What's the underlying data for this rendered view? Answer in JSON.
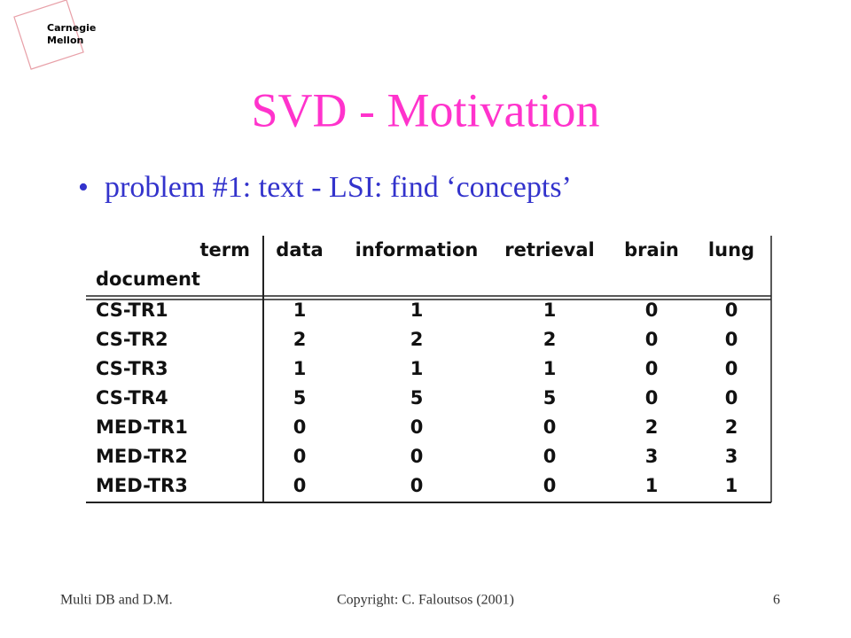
{
  "logo": {
    "line1": "Carnegie",
    "line2": "Mellon"
  },
  "title": "SVD - Motivation",
  "bullet": "problem #1: text - LSI: find ‘concepts’",
  "table": {
    "corner_top": "term",
    "corner_bottom": "document",
    "columns": [
      "data",
      "information",
      "retrieval",
      "brain",
      "lung"
    ],
    "rows": [
      [
        "CS-TR1",
        1,
        1,
        1,
        0,
        0
      ],
      [
        "CS-TR2",
        2,
        2,
        2,
        0,
        0
      ],
      [
        "CS-TR3",
        1,
        1,
        1,
        0,
        0
      ],
      [
        "CS-TR4",
        5,
        5,
        5,
        0,
        0
      ],
      [
        "MED-TR1",
        0,
        0,
        0,
        2,
        2
      ],
      [
        "MED-TR2",
        0,
        0,
        0,
        3,
        3
      ],
      [
        "MED-TR3",
        0,
        0,
        0,
        1,
        1
      ]
    ]
  },
  "footer": {
    "left": "Multi DB and D.M.",
    "center": "Copyright: C. Faloutsos (2001)",
    "right": "6"
  }
}
